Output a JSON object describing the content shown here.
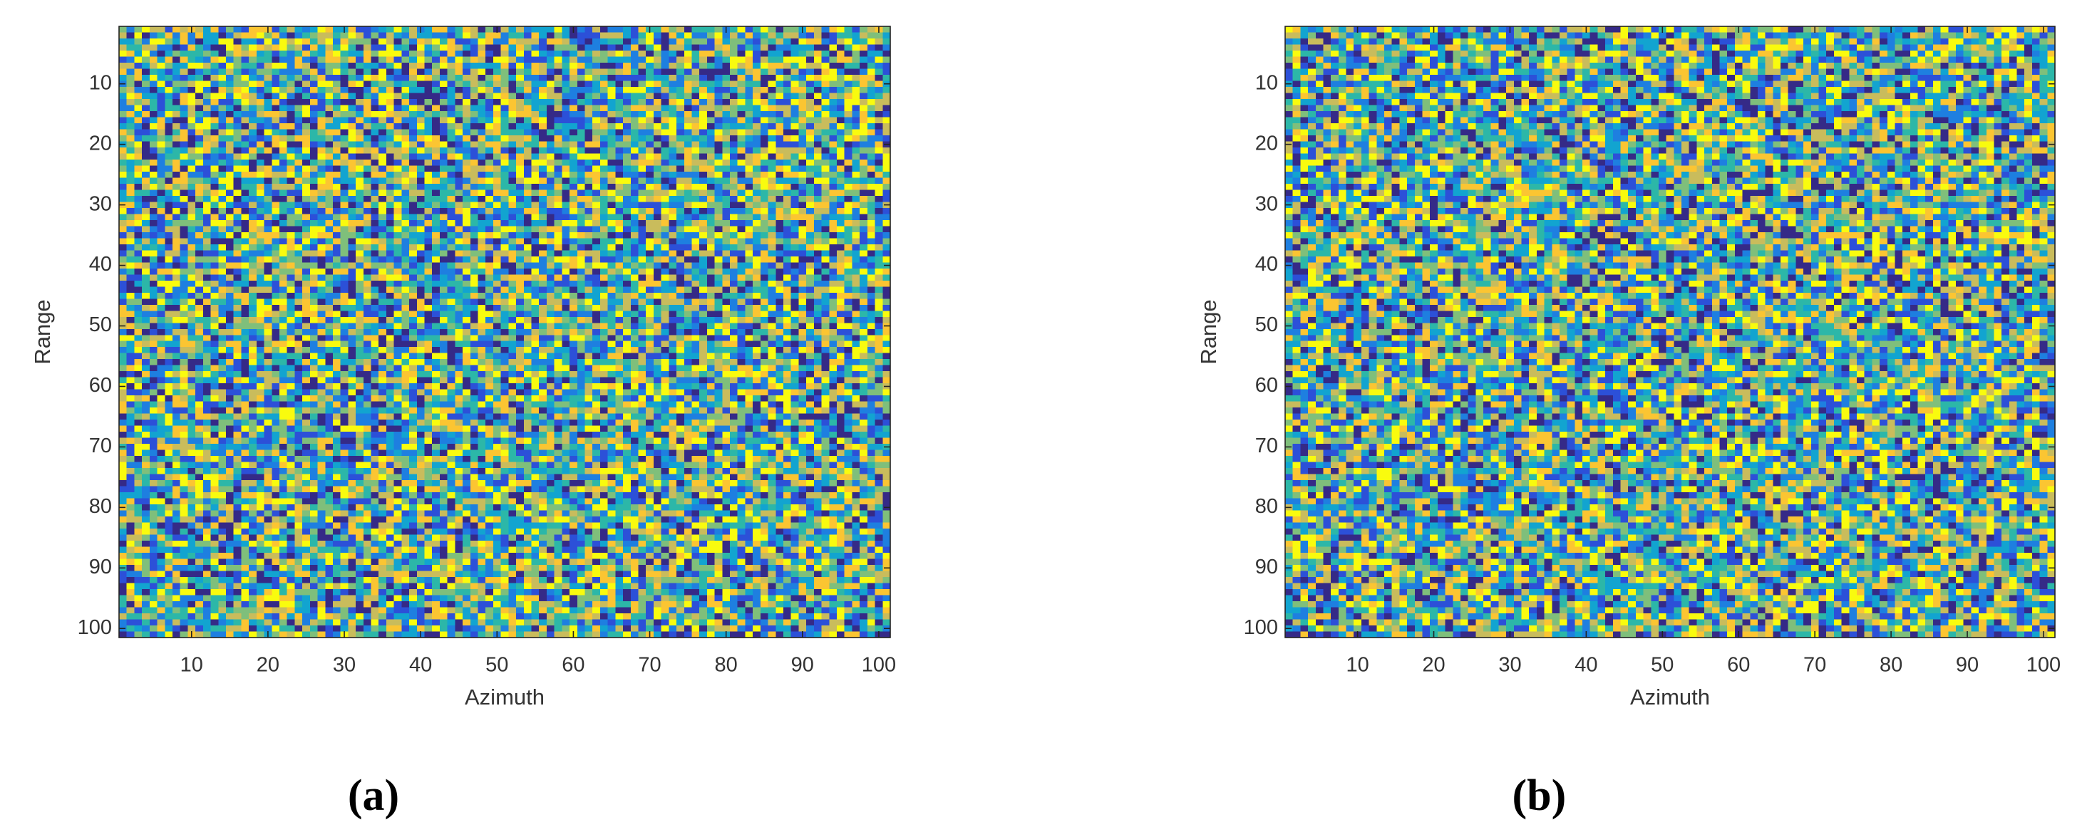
{
  "chart_data": [
    {
      "type": "heatmap",
      "caption": "(a)",
      "xlabel": "Azimuth",
      "ylabel": "Range",
      "xlim": [
        0.5,
        101.5
      ],
      "ylim": [
        0.5,
        101.5
      ],
      "y_reversed": true,
      "xticks": [
        10,
        20,
        30,
        40,
        50,
        60,
        70,
        80,
        90,
        100
      ],
      "yticks": [
        10,
        20,
        30,
        40,
        50,
        60,
        70,
        80,
        90,
        100
      ],
      "colormap": [
        "#352a87",
        "#2c50d8",
        "#1e7fe0",
        "#12a4d0",
        "#2cb7a8",
        "#7fbf7b",
        "#c9bc5c",
        "#fbc532",
        "#f9fb0e"
      ]
    },
    {
      "type": "heatmap",
      "caption": "(b)",
      "xlabel": "Azimuth",
      "ylabel": "Range",
      "xlim": [
        0.5,
        101.5
      ],
      "ylim": [
        0.5,
        101.5
      ],
      "y_reversed": true,
      "xticks": [
        10,
        20,
        30,
        40,
        50,
        60,
        70,
        80,
        90,
        100
      ],
      "yticks": [
        10,
        20,
        30,
        40,
        50,
        60,
        70,
        80,
        90,
        100
      ],
      "colormap": [
        "#352a87",
        "#2c50d8",
        "#1e7fe0",
        "#12a4d0",
        "#2cb7a8",
        "#7fbf7b",
        "#c9bc5c",
        "#fbc532",
        "#f9fb0e"
      ]
    }
  ]
}
